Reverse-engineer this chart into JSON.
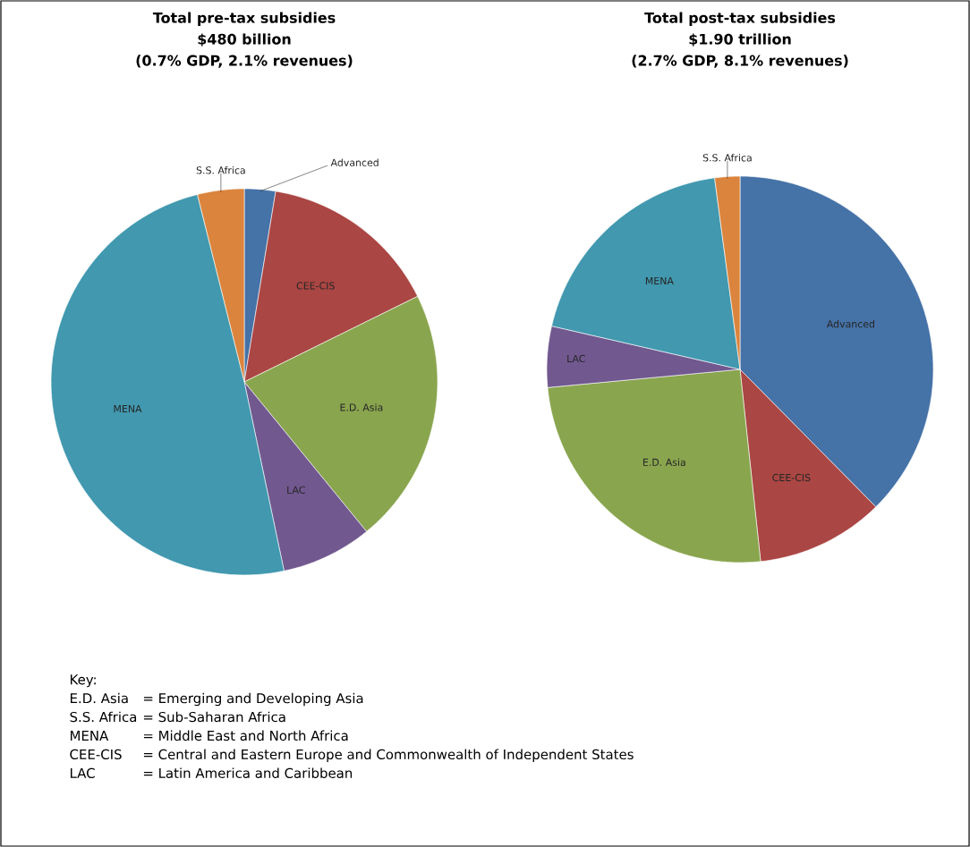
{
  "chart_data": [
    {
      "type": "pie",
      "title": "Total pre-tax subsidies",
      "subtitle": "$480 billion",
      "categories": [
        "Advanced",
        "CEE-CIS",
        "E.D. Asia",
        "LAC",
        "MENA",
        "S.S. Africa"
      ],
      "values": [
        2.6,
        15.1,
        21.4,
        7.6,
        49.4,
        3.9
      ],
      "colors": [
        "#4572a7",
        "#aa4643",
        "#89a54e",
        "#71588f",
        "#4198af",
        "#db843d"
      ],
      "annotations": [
        "(0.7% GDP, 2.1% revenues)",
        "Key:",
        "E.D. Asia",
        "= Emerging and Developing Asia",
        "S.S. Africa",
        "= Sub-Saharan Africa",
        "MENA",
        "= Middle East and North Africa",
        "CEE-CIS",
        "= Central and Eastern Europe and Commonwealth of Independent States",
        "LAC",
        "= Latin America and Caribbean"
      ]
    },
    {
      "type": "pie",
      "title": "Total post-tax subsidies",
      "subtitle": "$1.90 trillion",
      "categories": [
        "Advanced",
        "CEE-CIS",
        "E.D. Asia",
        "LAC",
        "MENA",
        "S.S. Africa"
      ],
      "values": [
        37.6,
        10.7,
        25.2,
        5.1,
        19.3,
        2.1
      ],
      "colors": [
        "#4572a7",
        "#aa4643",
        "#89a54e",
        "#71588f",
        "#4198af",
        "#db843d"
      ],
      "annotations": [
        "(2.7% GDP, 8.1% revenues)"
      ]
    }
  ]
}
